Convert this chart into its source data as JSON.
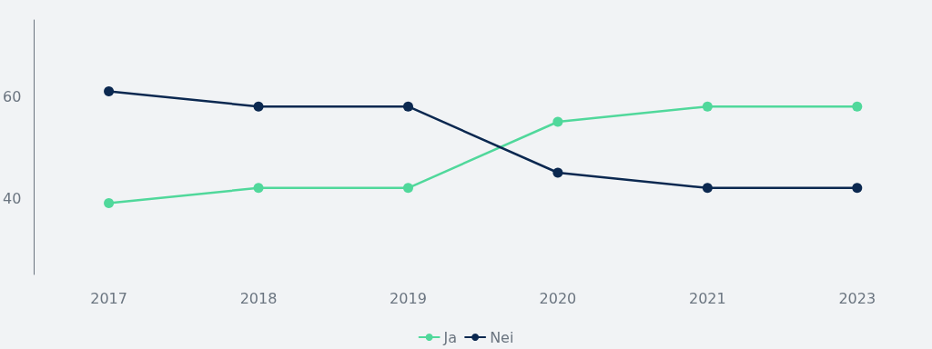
{
  "chart_data": {
    "type": "line",
    "categories": [
      "2017",
      "2018",
      "2019",
      "2020",
      "2021",
      "2023"
    ],
    "series": [
      {
        "name": "Ja",
        "color": "#50d89b",
        "values": [
          39,
          42,
          42,
          55,
          58,
          58
        ]
      },
      {
        "name": "Nei",
        "color": "#0b2850",
        "values": [
          61,
          58,
          58,
          45,
          42,
          42
        ]
      }
    ],
    "ylim": [
      25,
      75
    ],
    "yticks": [
      40,
      60
    ],
    "grid": false,
    "legend": "bottom",
    "marker": "circle",
    "line_style": "solid"
  }
}
